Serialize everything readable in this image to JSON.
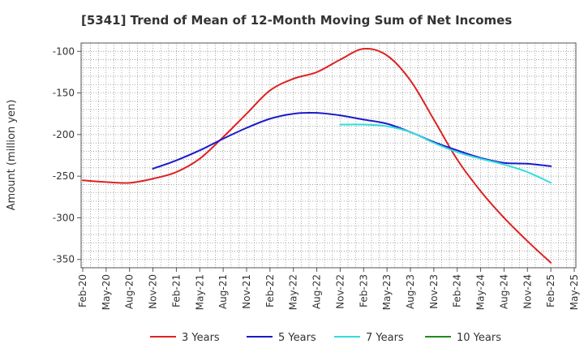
{
  "chart_data": {
    "type": "line",
    "title": "[5341]  Trend of Mean of 12-Month Moving Sum of Net Incomes",
    "ylabel": "Amount (million yen)",
    "xlabel": "",
    "ylim": [
      -360,
      -90
    ],
    "y_ticks": [
      -100,
      -150,
      -200,
      -250,
      -300,
      -350
    ],
    "x_ticks": [
      "Feb-20",
      "May-20",
      "Aug-20",
      "Nov-20",
      "Feb-21",
      "May-21",
      "Aug-21",
      "Nov-21",
      "Feb-22",
      "May-22",
      "Aug-22",
      "Nov-22",
      "Feb-23",
      "May-23",
      "Aug-23",
      "Nov-23",
      "Feb-24",
      "May-24",
      "Aug-24",
      "Nov-24",
      "Feb-25",
      "May-25"
    ],
    "grid": true,
    "legend_position": "bottom",
    "series": [
      {
        "name": "3 Years",
        "color": "#dd2222",
        "x": [
          "Feb-20",
          "May-20",
          "Aug-20",
          "Nov-20",
          "Feb-21",
          "May-21",
          "Aug-21",
          "Nov-21",
          "Feb-22",
          "May-22",
          "Aug-22",
          "Nov-22",
          "Feb-23",
          "May-23",
          "Aug-23",
          "Nov-23",
          "Feb-24",
          "May-24",
          "Aug-24",
          "Nov-24",
          "Feb-25"
        ],
        "values": [
          -255,
          -257,
          -258,
          -253,
          -245,
          -229,
          -203,
          -175,
          -147,
          -133,
          -125,
          -110,
          -97,
          -105,
          -135,
          -182,
          -230,
          -268,
          -300,
          -328,
          -354
        ]
      },
      {
        "name": "5 Years",
        "color": "#1a1acc",
        "x": [
          "Nov-20",
          "Feb-21",
          "May-21",
          "Aug-21",
          "Nov-21",
          "Feb-22",
          "May-22",
          "Aug-22",
          "Nov-22",
          "Feb-23",
          "May-23",
          "Aug-23",
          "Nov-23",
          "Feb-24",
          "May-24",
          "Aug-24",
          "Nov-24",
          "Feb-25"
        ],
        "values": [
          -241,
          -231,
          -219,
          -205,
          -192,
          -181,
          -175,
          -174,
          -177,
          -182,
          -187,
          -197,
          -209,
          -219,
          -228,
          -234,
          -235,
          -238
        ]
      },
      {
        "name": "7 Years",
        "color": "#33dddd",
        "x": [
          "Nov-22",
          "Feb-23",
          "May-23",
          "Aug-23",
          "Nov-23",
          "Feb-24",
          "May-24",
          "Aug-24",
          "Nov-24",
          "Feb-25"
        ],
        "values": [
          -188,
          -188,
          -190,
          -197,
          -210,
          -221,
          -229,
          -236,
          -245,
          -258
        ]
      },
      {
        "name": "10 Years",
        "color": "#228822",
        "x": [],
        "values": []
      }
    ]
  }
}
